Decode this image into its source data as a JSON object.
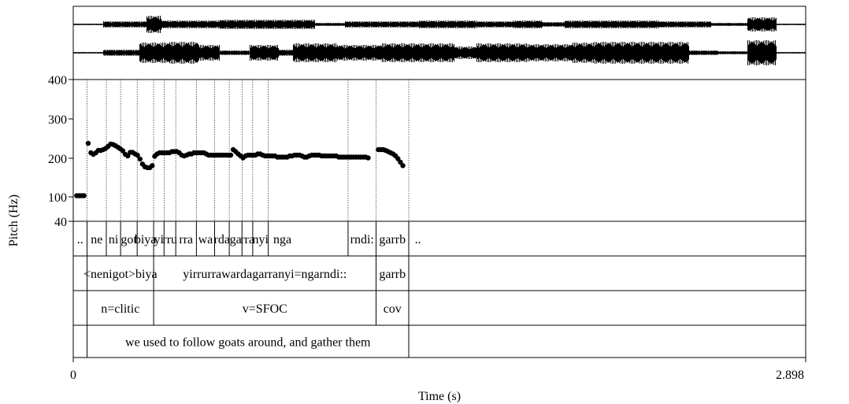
{
  "chart_data": {
    "type": "scatter",
    "x_label": "Time (s)",
    "x_range": [
      0,
      2.898
    ],
    "x_tick_labels": [
      "0",
      "2.898"
    ],
    "y_label": "Pitch (Hz)",
    "y_tick_labels": [
      "400",
      "300",
      "200",
      "100",
      "40"
    ],
    "y_ticks": [
      400,
      300,
      200,
      100,
      40
    ],
    "y_range": [
      40,
      400
    ],
    "series": [
      {
        "values": [
          [
            0.0136,
            103
          ],
          [
            0.0233,
            103
          ],
          [
            0.033,
            103
          ],
          [
            0.0427,
            103
          ],
          [
            0.0591,
            238
          ],
          [
            0.0698,
            214
          ],
          [
            0.0796,
            210
          ],
          [
            0.0893,
            214
          ],
          [
            0.099,
            220
          ],
          [
            0.1087,
            220
          ],
          [
            0.1184,
            222
          ],
          [
            0.1281,
            225
          ],
          [
            0.1378,
            230
          ],
          [
            0.1476,
            236
          ],
          [
            0.1573,
            235
          ],
          [
            0.167,
            232
          ],
          [
            0.1767,
            228
          ],
          [
            0.1864,
            224
          ],
          [
            0.1961,
            219
          ],
          [
            0.2058,
            210
          ],
          [
            0.2155,
            206
          ],
          [
            0.2252,
            215
          ],
          [
            0.2349,
            215
          ],
          [
            0.2447,
            211
          ],
          [
            0.2544,
            208
          ],
          [
            0.2641,
            198
          ],
          [
            0.2738,
            185
          ],
          [
            0.2835,
            178
          ],
          [
            0.2932,
            176
          ],
          [
            0.3029,
            176
          ],
          [
            0.3126,
            181
          ],
          [
            0.3223,
            205
          ],
          [
            0.332,
            211
          ],
          [
            0.3417,
            214
          ],
          [
            0.3515,
            214
          ],
          [
            0.3612,
            214
          ],
          [
            0.3709,
            214
          ],
          [
            0.3806,
            214
          ],
          [
            0.3903,
            217
          ],
          [
            0.4,
            217
          ],
          [
            0.4097,
            217
          ],
          [
            0.4194,
            214
          ],
          [
            0.4291,
            208
          ],
          [
            0.4388,
            206
          ],
          [
            0.4485,
            208
          ],
          [
            0.4583,
            211
          ],
          [
            0.468,
            211
          ],
          [
            0.4777,
            214
          ],
          [
            0.4874,
            214
          ],
          [
            0.4971,
            214
          ],
          [
            0.5068,
            214
          ],
          [
            0.5165,
            214
          ],
          [
            0.5262,
            211
          ],
          [
            0.5359,
            208
          ],
          [
            0.5456,
            208
          ],
          [
            0.5553,
            208
          ],
          [
            0.5651,
            208
          ],
          [
            0.5748,
            208
          ],
          [
            0.5845,
            208
          ],
          [
            0.5942,
            208
          ],
          [
            0.6039,
            208
          ],
          [
            0.6136,
            208
          ],
          [
            0.6233,
            208
          ],
          [
            0.633,
            222
          ],
          [
            0.6427,
            217
          ],
          [
            0.6524,
            211
          ],
          [
            0.6621,
            206
          ],
          [
            0.6719,
            201
          ],
          [
            0.6816,
            206
          ],
          [
            0.6913,
            208
          ],
          [
            0.701,
            208
          ],
          [
            0.7107,
            208
          ],
          [
            0.7204,
            208
          ],
          [
            0.7301,
            211
          ],
          [
            0.7398,
            211
          ],
          [
            0.7495,
            208
          ],
          [
            0.7592,
            206
          ],
          [
            0.7689,
            206
          ],
          [
            0.7786,
            206
          ],
          [
            0.7884,
            206
          ],
          [
            0.7981,
            206
          ],
          [
            0.8078,
            203
          ],
          [
            0.8175,
            203
          ],
          [
            0.8272,
            203
          ],
          [
            0.8369,
            203
          ],
          [
            0.8466,
            203
          ],
          [
            0.8563,
            206
          ],
          [
            0.866,
            206
          ],
          [
            0.8757,
            208
          ],
          [
            0.8854,
            208
          ],
          [
            0.8952,
            208
          ],
          [
            0.9049,
            206
          ],
          [
            0.9146,
            203
          ],
          [
            0.9243,
            203
          ],
          [
            0.934,
            206
          ],
          [
            0.9437,
            208
          ],
          [
            0.9534,
            208
          ],
          [
            0.9631,
            208
          ],
          [
            0.9728,
            208
          ],
          [
            0.9825,
            206
          ],
          [
            0.9922,
            206
          ],
          [
            1.0019,
            206
          ],
          [
            1.0116,
            206
          ],
          [
            1.0213,
            206
          ],
          [
            1.031,
            206
          ],
          [
            1.0407,
            206
          ],
          [
            1.0504,
            203
          ],
          [
            1.0601,
            203
          ],
          [
            1.0699,
            203
          ],
          [
            1.0796,
            203
          ],
          [
            1.0893,
            203
          ],
          [
            1.099,
            203
          ],
          [
            1.1087,
            203
          ],
          [
            1.1184,
            203
          ],
          [
            1.1281,
            203
          ],
          [
            1.1378,
            203
          ],
          [
            1.1475,
            203
          ],
          [
            1.1572,
            203
          ],
          [
            1.1669,
            201
          ],
          [
            1.2073,
            222
          ],
          [
            1.2169,
            222
          ],
          [
            1.2266,
            222
          ],
          [
            1.2363,
            220
          ],
          [
            1.246,
            217
          ],
          [
            1.2557,
            214
          ],
          [
            1.2654,
            211
          ],
          [
            1.2751,
            206
          ],
          [
            1.2848,
            199
          ],
          [
            1.2945,
            190
          ],
          [
            1.3041,
            181
          ]
        ]
      }
    ],
    "axis_scale": "Hz ticks at 400, 300, 200, 100, 40"
  },
  "waveform": {
    "color": "#000000"
  },
  "tiers": [
    {
      "name": "syllables",
      "intervals": [
        {
          "start": 0,
          "end": 0.0546,
          "text": ".."
        },
        {
          "start": 0.0546,
          "end": 0.1309,
          "text": "ne"
        },
        {
          "start": 0.1309,
          "end": 0.1873,
          "text": "ni"
        },
        {
          "start": 0.1873,
          "end": 0.2529,
          "text": "got"
        },
        {
          "start": 0.2529,
          "end": 0.3181,
          "text": "biya"
        },
        {
          "start": 0.3181,
          "end": 0.3593,
          "text": "yi"
        },
        {
          "start": 0.3593,
          "end": 0.4056,
          "text": "rru"
        },
        {
          "start": 0.4056,
          "end": 0.4873,
          "text": "rra"
        },
        {
          "start": 0.4873,
          "end": 0.5592,
          "text": "wa"
        },
        {
          "start": 0.5592,
          "end": 0.6173,
          "text": "rda"
        },
        {
          "start": 0.6173,
          "end": 0.6677,
          "text": "ga"
        },
        {
          "start": 0.6677,
          "end": 0.7101,
          "text": "rra"
        },
        {
          "start": 0.7101,
          "end": 0.7716,
          "text": "nyi"
        },
        {
          "start": 0.7716,
          "end": 0.8832,
          "text": "nga"
        },
        {
          "start": 1.0874,
          "end": 1.1982,
          "text": "rndi:"
        },
        {
          "start": 1.1982,
          "end": 1.3275,
          "text": "garrb"
        },
        {
          "start": 1.3275,
          "end": 1.4,
          "text": ".."
        }
      ]
    },
    {
      "name": "words",
      "intervals": [
        {
          "start": 0,
          "end": 0.0546,
          "text": ""
        },
        {
          "start": 0.0546,
          "end": 0.3181,
          "text": "<nenigot>biya"
        },
        {
          "start": 0.3181,
          "end": 1.1982,
          "text": "yirrurrawardagarranyi=ngarndi::"
        },
        {
          "start": 1.1982,
          "end": 1.3275,
          "text": "garrb"
        },
        {
          "start": 1.3275,
          "end": 1.4,
          "text": ""
        }
      ]
    },
    {
      "name": "gloss",
      "intervals": [
        {
          "start": 0,
          "end": 0.0546,
          "text": ""
        },
        {
          "start": 0.0546,
          "end": 0.3181,
          "text": "n=clitic"
        },
        {
          "start": 0.3181,
          "end": 1.1982,
          "text": "v=SFOC"
        },
        {
          "start": 1.1982,
          "end": 1.3275,
          "text": "cov"
        },
        {
          "start": 1.3275,
          "end": 1.4,
          "text": ""
        }
      ]
    },
    {
      "name": "translation",
      "intervals": [
        {
          "start": 0,
          "end": 0.0546,
          "text": ""
        },
        {
          "start": 0.0546,
          "end": 1.3275,
          "text": "we used to follow goats around, and gather them"
        },
        {
          "start": 1.3275,
          "end": 1.4,
          "text": ""
        }
      ]
    }
  ]
}
